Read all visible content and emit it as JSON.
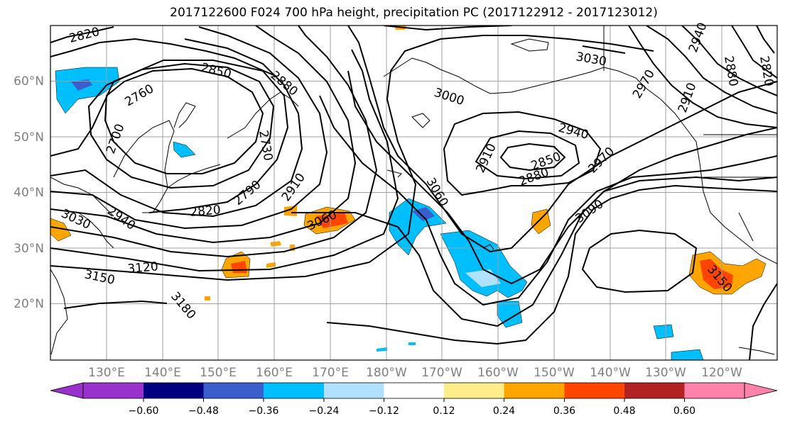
{
  "title": "2017122600 F024 700 hPa height, precipitation PC (2017122912 - 2017123012)",
  "lat_labels": [
    "60°N",
    "50°N",
    "40°N",
    "30°N",
    "20°N"
  ],
  "lon_labels": [
    "130°E",
    "140°E",
    "150°E",
    "160°E",
    "170°E",
    "180°W",
    "170°W",
    "160°W",
    "150°W",
    "140°W",
    "130°W",
    "120°W"
  ],
  "contour_labels": [
    "2820",
    "2850",
    "2760",
    "2700",
    "2880",
    "2730",
    "3000",
    "3030",
    "2940",
    "2910",
    "2850",
    "2880",
    "2970",
    "3060",
    "3060",
    "2910",
    "2790",
    "2820",
    "2940",
    "3030",
    "3090",
    "3120",
    "3150",
    "3180",
    "3150",
    "2940",
    "2880",
    "2910",
    "2970",
    "2820"
  ],
  "colorbar": {
    "tick_labels": [
      "−0.60",
      "−0.48",
      "−0.36",
      "−0.24",
      "−0.12",
      "0.12",
      "0.24",
      "0.36",
      "0.48",
      "0.60"
    ],
    "colors": [
      "#9932cc",
      "#000080",
      "#3a5fcd",
      "#00bfff",
      "#b0e2ff",
      "#ffffff",
      "#ffec8b",
      "#ffa500",
      "#ff4500",
      "#b22222",
      "#ff82ab"
    ]
  }
}
